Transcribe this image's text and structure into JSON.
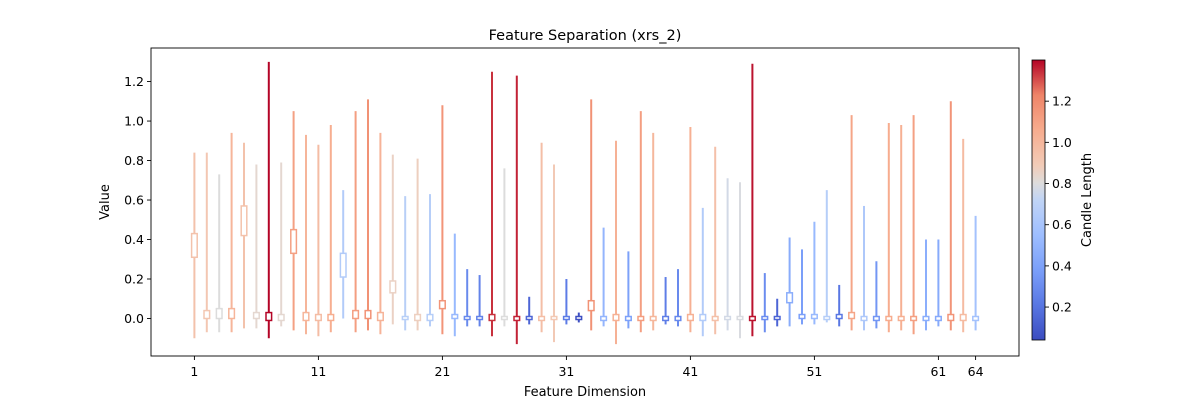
{
  "chart_data": {
    "type": "candlestick",
    "title": "Feature Separation (xrs_2)",
    "xlabel": "Feature Dimension",
    "ylabel": "Value",
    "x_ticks": [
      "1",
      "11",
      "21",
      "31",
      "41",
      "51",
      "61",
      "64"
    ],
    "y_ticks": [
      "0.0",
      "0.2",
      "0.4",
      "0.6",
      "0.8",
      "1.0",
      "1.2"
    ],
    "xlim": [
      -2.5,
      67.5
    ],
    "ylim": [
      -0.19,
      1.37
    ],
    "colorbar": {
      "label": "Candle Length",
      "range": [
        0.04,
        1.4
      ],
      "ticks": [
        "0.2",
        "0.4",
        "0.6",
        "0.8",
        "1.0",
        "1.2"
      ],
      "colormap": "coolwarm"
    },
    "candles": [
      {
        "dim": 1,
        "low": -0.1,
        "high": 0.84,
        "q1": 0.31,
        "q3": 0.43
      },
      {
        "dim": 2,
        "low": -0.07,
        "high": 0.84,
        "q1": 0.0,
        "q3": 0.04
      },
      {
        "dim": 3,
        "low": -0.07,
        "high": 0.73,
        "q1": 0.0,
        "q3": 0.05
      },
      {
        "dim": 4,
        "low": -0.07,
        "high": 0.94,
        "q1": 0.0,
        "q3": 0.05
      },
      {
        "dim": 5,
        "low": -0.05,
        "high": 0.89,
        "q1": 0.42,
        "q3": 0.57
      },
      {
        "dim": 6,
        "low": -0.05,
        "high": 0.78,
        "q1": 0.0,
        "q3": 0.03
      },
      {
        "dim": 7,
        "low": -0.1,
        "high": 1.3,
        "q1": -0.01,
        "q3": 0.03
      },
      {
        "dim": 8,
        "low": -0.04,
        "high": 0.79,
        "q1": -0.01,
        "q3": 0.02
      },
      {
        "dim": 9,
        "low": -0.06,
        "high": 1.05,
        "q1": 0.33,
        "q3": 0.45
      },
      {
        "dim": 10,
        "low": -0.08,
        "high": 0.93,
        "q1": -0.01,
        "q3": 0.03
      },
      {
        "dim": 11,
        "low": -0.09,
        "high": 0.88,
        "q1": -0.01,
        "q3": 0.02
      },
      {
        "dim": 12,
        "low": -0.07,
        "high": 0.98,
        "q1": -0.01,
        "q3": 0.02
      },
      {
        "dim": 13,
        "low": 0.0,
        "high": 0.65,
        "q1": 0.21,
        "q3": 0.33
      },
      {
        "dim": 14,
        "low": -0.07,
        "high": 1.05,
        "q1": 0.0,
        "q3": 0.04
      },
      {
        "dim": 15,
        "low": -0.06,
        "high": 1.11,
        "q1": 0.0,
        "q3": 0.04
      },
      {
        "dim": 16,
        "low": -0.08,
        "high": 0.94,
        "q1": -0.01,
        "q3": 0.03
      },
      {
        "dim": 17,
        "low": -0.03,
        "high": 0.83,
        "q1": 0.13,
        "q3": 0.19
      },
      {
        "dim": 18,
        "low": -0.06,
        "high": 0.62,
        "q1": 0.0,
        "q3": 0.01
      },
      {
        "dim": 19,
        "low": -0.06,
        "high": 0.81,
        "q1": -0.01,
        "q3": 0.02
      },
      {
        "dim": 20,
        "low": -0.04,
        "high": 0.63,
        "q1": -0.01,
        "q3": 0.02
      },
      {
        "dim": 21,
        "low": -0.08,
        "high": 1.08,
        "q1": 0.05,
        "q3": 0.09
      },
      {
        "dim": 22,
        "low": -0.09,
        "high": 0.43,
        "q1": 0.0,
        "q3": 0.02
      },
      {
        "dim": 23,
        "low": -0.04,
        "high": 0.25,
        "q1": 0.0,
        "q3": 0.01
      },
      {
        "dim": 24,
        "low": -0.04,
        "high": 0.22,
        "q1": 0.0,
        "q3": 0.01
      },
      {
        "dim": 25,
        "low": -0.09,
        "high": 1.25,
        "q1": -0.01,
        "q3": 0.02
      },
      {
        "dim": 26,
        "low": -0.04,
        "high": 0.76,
        "q1": 0.0,
        "q3": 0.01
      },
      {
        "dim": 27,
        "low": -0.13,
        "high": 1.23,
        "q1": -0.01,
        "q3": 0.01
      },
      {
        "dim": 28,
        "low": -0.03,
        "high": 0.11,
        "q1": 0.0,
        "q3": 0.01
      },
      {
        "dim": 29,
        "low": -0.07,
        "high": 0.89,
        "q1": -0.01,
        "q3": 0.01
      },
      {
        "dim": 30,
        "low": -0.12,
        "high": 0.78,
        "q1": 0.0,
        "q3": 0.01
      },
      {
        "dim": 31,
        "low": -0.03,
        "high": 0.2,
        "q1": 0.0,
        "q3": 0.01
      },
      {
        "dim": 32,
        "low": -0.02,
        "high": 0.03,
        "q1": 0.0,
        "q3": 0.01
      },
      {
        "dim": 33,
        "low": -0.06,
        "high": 1.11,
        "q1": 0.04,
        "q3": 0.09
      },
      {
        "dim": 34,
        "low": -0.04,
        "high": 0.46,
        "q1": -0.01,
        "q3": 0.01
      },
      {
        "dim": 35,
        "low": -0.13,
        "high": 0.9,
        "q1": -0.01,
        "q3": 0.02
      },
      {
        "dim": 36,
        "low": -0.05,
        "high": 0.34,
        "q1": -0.01,
        "q3": 0.01
      },
      {
        "dim": 37,
        "low": -0.07,
        "high": 1.05,
        "q1": -0.01,
        "q3": 0.01
      },
      {
        "dim": 38,
        "low": -0.06,
        "high": 0.94,
        "q1": -0.01,
        "q3": 0.01
      },
      {
        "dim": 39,
        "low": -0.03,
        "high": 0.21,
        "q1": -0.01,
        "q3": 0.01
      },
      {
        "dim": 40,
        "low": -0.04,
        "high": 0.25,
        "q1": -0.01,
        "q3": 0.01
      },
      {
        "dim": 41,
        "low": -0.07,
        "high": 0.97,
        "q1": -0.01,
        "q3": 0.02
      },
      {
        "dim": 42,
        "low": -0.09,
        "high": 0.56,
        "q1": -0.01,
        "q3": 0.02
      },
      {
        "dim": 43,
        "low": -0.08,
        "high": 0.87,
        "q1": -0.01,
        "q3": 0.01
      },
      {
        "dim": 44,
        "low": -0.06,
        "high": 0.71,
        "q1": 0.0,
        "q3": 0.01
      },
      {
        "dim": 45,
        "low": -0.1,
        "high": 0.69,
        "q1": 0.0,
        "q3": 0.01
      },
      {
        "dim": 46,
        "low": -0.09,
        "high": 1.29,
        "q1": -0.01,
        "q3": 0.01
      },
      {
        "dim": 47,
        "low": -0.07,
        "high": 0.23,
        "q1": 0.0,
        "q3": 0.01
      },
      {
        "dim": 48,
        "low": -0.04,
        "high": 0.1,
        "q1": 0.0,
        "q3": 0.01
      },
      {
        "dim": 49,
        "low": -0.04,
        "high": 0.41,
        "q1": 0.08,
        "q3": 0.13
      },
      {
        "dim": 50,
        "low": -0.03,
        "high": 0.35,
        "q1": 0.0,
        "q3": 0.02
      },
      {
        "dim": 51,
        "low": -0.03,
        "high": 0.49,
        "q1": 0.0,
        "q3": 0.02
      },
      {
        "dim": 52,
        "low": -0.02,
        "high": 0.65,
        "q1": 0.0,
        "q3": 0.01
      },
      {
        "dim": 53,
        "low": -0.04,
        "high": 0.17,
        "q1": 0.0,
        "q3": 0.02
      },
      {
        "dim": 54,
        "low": -0.06,
        "high": 1.03,
        "q1": 0.0,
        "q3": 0.03
      },
      {
        "dim": 55,
        "low": -0.06,
        "high": 0.57,
        "q1": -0.01,
        "q3": 0.01
      },
      {
        "dim": 56,
        "low": -0.05,
        "high": 0.29,
        "q1": -0.01,
        "q3": 0.01
      },
      {
        "dim": 57,
        "low": -0.07,
        "high": 0.99,
        "q1": -0.01,
        "q3": 0.01
      },
      {
        "dim": 58,
        "low": -0.06,
        "high": 0.98,
        "q1": -0.01,
        "q3": 0.01
      },
      {
        "dim": 59,
        "low": -0.08,
        "high": 1.03,
        "q1": -0.01,
        "q3": 0.01
      },
      {
        "dim": 60,
        "low": -0.06,
        "high": 0.4,
        "q1": -0.01,
        "q3": 0.01
      },
      {
        "dim": 61,
        "low": -0.04,
        "high": 0.4,
        "q1": -0.01,
        "q3": 0.01
      },
      {
        "dim": 62,
        "low": -0.06,
        "high": 1.1,
        "q1": -0.01,
        "q3": 0.02
      },
      {
        "dim": 63,
        "low": -0.07,
        "high": 0.91,
        "q1": -0.01,
        "q3": 0.02
      },
      {
        "dim": 64,
        "low": -0.06,
        "high": 0.52,
        "q1": -0.01,
        "q3": 0.01
      }
    ]
  }
}
